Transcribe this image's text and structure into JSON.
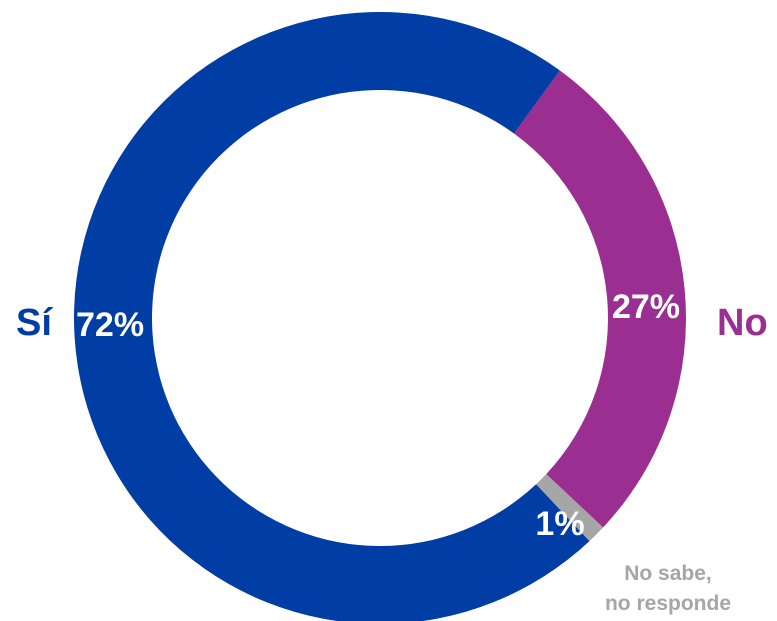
{
  "chart_data": {
    "type": "pie",
    "variant": "donut",
    "categories": [
      "Sí",
      "No",
      "No sabe, no responde"
    ],
    "values": [
      72,
      27,
      1
    ],
    "value_labels": [
      "72%",
      "27%",
      "1%"
    ],
    "category_labels": {
      "si": "Sí",
      "no": "No",
      "ns_line1": "No sabe,",
      "ns_line2": "no responde"
    },
    "colors": [
      "#003DA5",
      "#9B2F91",
      "#A6A6A6"
    ],
    "title": "",
    "legend": "none"
  }
}
